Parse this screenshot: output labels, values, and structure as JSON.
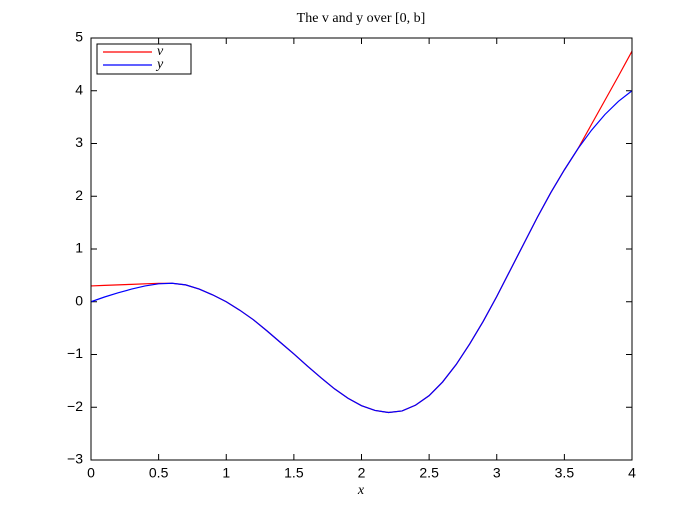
{
  "chart_data": {
    "type": "line",
    "title": "The v and y over [0, b]",
    "xlabel": "x",
    "x": [
      0,
      0.1,
      0.2,
      0.3,
      0.4,
      0.5,
      0.6,
      0.7,
      0.8,
      0.9,
      1.0,
      1.1,
      1.2,
      1.3,
      1.4,
      1.5,
      1.6,
      1.7,
      1.8,
      1.9,
      2.0,
      2.1,
      2.2,
      2.3,
      2.4,
      2.5,
      2.6,
      2.7,
      2.8,
      2.9,
      3.0,
      3.1,
      3.2,
      3.3,
      3.4,
      3.5,
      3.6,
      3.7,
      3.8,
      3.9,
      4.0
    ],
    "series": [
      {
        "name": "v",
        "color": "#ff0000",
        "values": [
          0.3,
          0.31,
          0.32,
          0.33,
          0.34,
          0.35,
          0.35,
          0.32,
          0.24,
          0.13,
          0.0,
          -0.16,
          -0.34,
          -0.55,
          -0.77,
          -0.99,
          -1.22,
          -1.44,
          -1.65,
          -1.83,
          -1.97,
          -2.06,
          -2.1,
          -2.07,
          -1.96,
          -1.78,
          -1.52,
          -1.19,
          -0.8,
          -0.37,
          0.1,
          0.6,
          1.1,
          1.6,
          2.07,
          2.5,
          2.9,
          3.36,
          3.82,
          4.28,
          4.75
        ]
      },
      {
        "name": "y",
        "color": "#0000ff",
        "values": [
          0,
          0.09,
          0.17,
          0.24,
          0.3,
          0.34,
          0.35,
          0.32,
          0.24,
          0.13,
          0.0,
          -0.16,
          -0.34,
          -0.55,
          -0.77,
          -0.99,
          -1.22,
          -1.44,
          -1.65,
          -1.83,
          -1.97,
          -2.06,
          -2.1,
          -2.07,
          -1.96,
          -1.78,
          -1.52,
          -1.19,
          -0.8,
          -0.37,
          0.1,
          0.6,
          1.1,
          1.6,
          2.07,
          2.5,
          2.9,
          3.25,
          3.55,
          3.8,
          4.0
        ]
      }
    ],
    "xlim": [
      0,
      4
    ],
    "xticks": [
      0,
      0.5,
      1,
      1.5,
      2,
      2.5,
      3,
      3.5,
      4
    ],
    "ylim": [
      -3,
      5
    ],
    "yticks": [
      {
        "value": -3,
        "label": "−3"
      },
      {
        "value": -2,
        "label": "−2"
      },
      {
        "value": -1,
        "label": "−1"
      },
      0,
      1,
      2,
      3,
      4,
      5
    ],
    "grid": false,
    "legend": "upper left"
  }
}
